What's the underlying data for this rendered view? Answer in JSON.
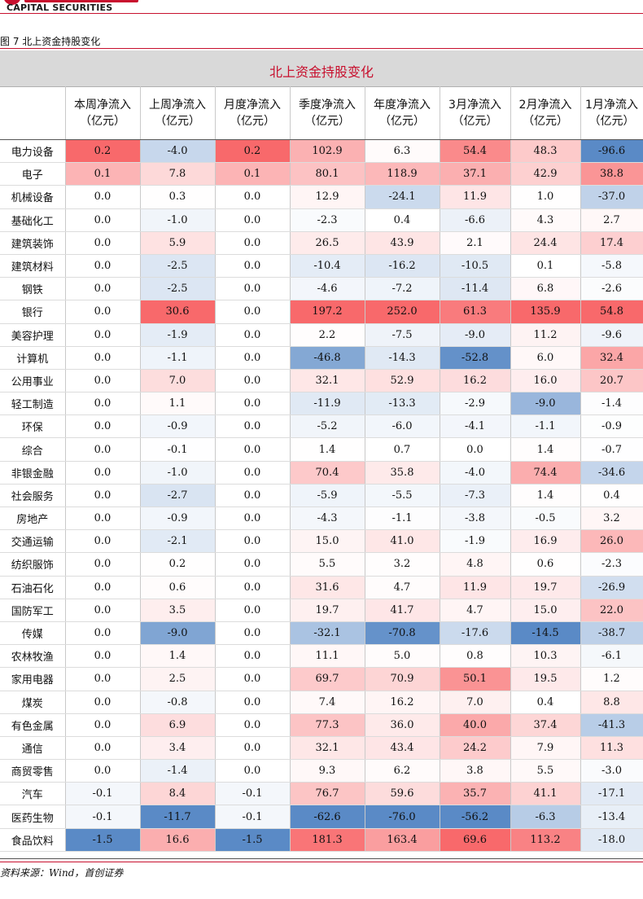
{
  "header": {
    "logo_en": "CAPITAL SECURITIES"
  },
  "figure": {
    "caption": "图 7 北上资金持股变化",
    "title": "北上资金持股变化"
  },
  "table": {
    "columns": [
      {
        "line1": "",
        "line2": ""
      },
      {
        "line1": "本周净流入",
        "line2": "（亿元）"
      },
      {
        "line1": "上周净流入",
        "line2": "（亿元）"
      },
      {
        "line1": "月度净流入",
        "line2": "（亿元）"
      },
      {
        "line1": "季度净流入",
        "line2": "（亿元）"
      },
      {
        "line1": "年度净流入",
        "line2": "（亿元）"
      },
      {
        "line1": "3月净流入",
        "line2": "（亿元）"
      },
      {
        "line1": "2月净流入",
        "line2": "（亿元）"
      },
      {
        "line1": "1月净流入",
        "line2": "（亿元）"
      }
    ],
    "rows": [
      {
        "name": "电力设备",
        "v": [
          "0.2",
          "-4.0",
          "0.2",
          "102.9",
          "6.3",
          "54.4",
          "48.3",
          "-96.6"
        ]
      },
      {
        "name": "电子",
        "v": [
          "0.1",
          "7.8",
          "0.1",
          "80.1",
          "118.9",
          "37.1",
          "42.9",
          "38.8"
        ]
      },
      {
        "name": "机械设备",
        "v": [
          "0.0",
          "0.3",
          "0.0",
          "12.9",
          "-24.1",
          "11.9",
          "1.0",
          "-37.0"
        ]
      },
      {
        "name": "基础化工",
        "v": [
          "0.0",
          "-1.0",
          "0.0",
          "-2.3",
          "0.4",
          "-6.6",
          "4.3",
          "2.7"
        ]
      },
      {
        "name": "建筑装饰",
        "v": [
          "0.0",
          "5.9",
          "0.0",
          "26.5",
          "43.9",
          "2.1",
          "24.4",
          "17.4"
        ]
      },
      {
        "name": "建筑材料",
        "v": [
          "0.0",
          "-2.5",
          "0.0",
          "-10.4",
          "-16.2",
          "-10.5",
          "0.1",
          "-5.8"
        ]
      },
      {
        "name": "钢铁",
        "v": [
          "0.0",
          "-2.5",
          "0.0",
          "-4.6",
          "-7.2",
          "-11.4",
          "6.8",
          "-2.6"
        ]
      },
      {
        "name": "银行",
        "v": [
          "0.0",
          "30.6",
          "0.0",
          "197.2",
          "252.0",
          "61.3",
          "135.9",
          "54.8"
        ]
      },
      {
        "name": "美容护理",
        "v": [
          "0.0",
          "-1.9",
          "0.0",
          "2.2",
          "-7.5",
          "-9.0",
          "11.2",
          "-9.6"
        ]
      },
      {
        "name": "计算机",
        "v": [
          "0.0",
          "-1.1",
          "0.0",
          "-46.8",
          "-14.3",
          "-52.8",
          "6.0",
          "32.4"
        ]
      },
      {
        "name": "公用事业",
        "v": [
          "0.0",
          "7.0",
          "0.0",
          "32.1",
          "52.9",
          "16.2",
          "16.0",
          "20.7"
        ]
      },
      {
        "name": "轻工制造",
        "v": [
          "0.0",
          "1.1",
          "0.0",
          "-11.9",
          "-13.3",
          "-2.9",
          "-9.0",
          "-1.4"
        ]
      },
      {
        "name": "环保",
        "v": [
          "0.0",
          "-0.9",
          "0.0",
          "-5.2",
          "-6.0",
          "-4.1",
          "-1.1",
          "-0.9"
        ]
      },
      {
        "name": "综合",
        "v": [
          "0.0",
          "-0.1",
          "0.0",
          "1.4",
          "0.7",
          "0.0",
          "1.4",
          "-0.7"
        ]
      },
      {
        "name": "非银金融",
        "v": [
          "0.0",
          "-1.0",
          "0.0",
          "70.4",
          "35.8",
          "-4.0",
          "74.4",
          "-34.6"
        ]
      },
      {
        "name": "社会服务",
        "v": [
          "0.0",
          "-2.7",
          "0.0",
          "-5.9",
          "-5.5",
          "-7.3",
          "1.4",
          "0.4"
        ]
      },
      {
        "name": "房地产",
        "v": [
          "0.0",
          "-0.9",
          "0.0",
          "-4.3",
          "-1.1",
          "-3.8",
          "-0.5",
          "3.2"
        ]
      },
      {
        "name": "交通运输",
        "v": [
          "0.0",
          "-2.1",
          "0.0",
          "15.0",
          "41.0",
          "-1.9",
          "16.9",
          "26.0"
        ]
      },
      {
        "name": "纺织服饰",
        "v": [
          "0.0",
          "0.2",
          "0.0",
          "5.5",
          "3.2",
          "4.8",
          "0.6",
          "-2.3"
        ]
      },
      {
        "name": "石油石化",
        "v": [
          "0.0",
          "0.6",
          "0.0",
          "31.6",
          "4.7",
          "11.9",
          "19.7",
          "-26.9"
        ]
      },
      {
        "name": "国防军工",
        "v": [
          "0.0",
          "3.5",
          "0.0",
          "19.7",
          "41.7",
          "4.7",
          "15.0",
          "22.0"
        ]
      },
      {
        "name": "传媒",
        "v": [
          "0.0",
          "-9.0",
          "0.0",
          "-32.1",
          "-70.8",
          "-17.6",
          "-14.5",
          "-38.7"
        ]
      },
      {
        "name": "农林牧渔",
        "v": [
          "0.0",
          "1.4",
          "0.0",
          "11.1",
          "5.0",
          "0.8",
          "10.3",
          "-6.1"
        ]
      },
      {
        "name": "家用电器",
        "v": [
          "0.0",
          "2.5",
          "0.0",
          "69.7",
          "70.9",
          "50.1",
          "19.5",
          "1.2"
        ]
      },
      {
        "name": "煤炭",
        "v": [
          "0.0",
          "-0.8",
          "0.0",
          "7.4",
          "16.2",
          "7.0",
          "0.4",
          "8.8"
        ]
      },
      {
        "name": "有色金属",
        "v": [
          "0.0",
          "6.9",
          "0.0",
          "77.3",
          "36.0",
          "40.0",
          "37.4",
          "-41.3"
        ]
      },
      {
        "name": "通信",
        "v": [
          "0.0",
          "3.4",
          "0.0",
          "32.1",
          "43.4",
          "24.2",
          "7.9",
          "11.3"
        ]
      },
      {
        "name": "商贸零售",
        "v": [
          "0.0",
          "-1.4",
          "0.0",
          "9.3",
          "6.2",
          "3.8",
          "5.5",
          "-3.0"
        ]
      },
      {
        "name": "汽车",
        "v": [
          "-0.1",
          "8.4",
          "-0.1",
          "76.7",
          "59.6",
          "35.7",
          "41.1",
          "-17.1"
        ]
      },
      {
        "name": "医药生物",
        "v": [
          "-0.1",
          "-11.7",
          "-0.1",
          "-62.6",
          "-76.0",
          "-56.2",
          "-6.3",
          "-13.4"
        ]
      },
      {
        "name": "食品饮料",
        "v": [
          "-1.5",
          "16.6",
          "-1.5",
          "181.3",
          "163.4",
          "69.6",
          "113.2",
          "-18.0"
        ]
      }
    ]
  },
  "colors": {
    "positive": "#f8696b",
    "negative": "#5a8ac6",
    "neutral": "#ffffff",
    "accent": "#c8102e"
  },
  "footer": {
    "source": "资料来源：Wind，首创证券"
  }
}
